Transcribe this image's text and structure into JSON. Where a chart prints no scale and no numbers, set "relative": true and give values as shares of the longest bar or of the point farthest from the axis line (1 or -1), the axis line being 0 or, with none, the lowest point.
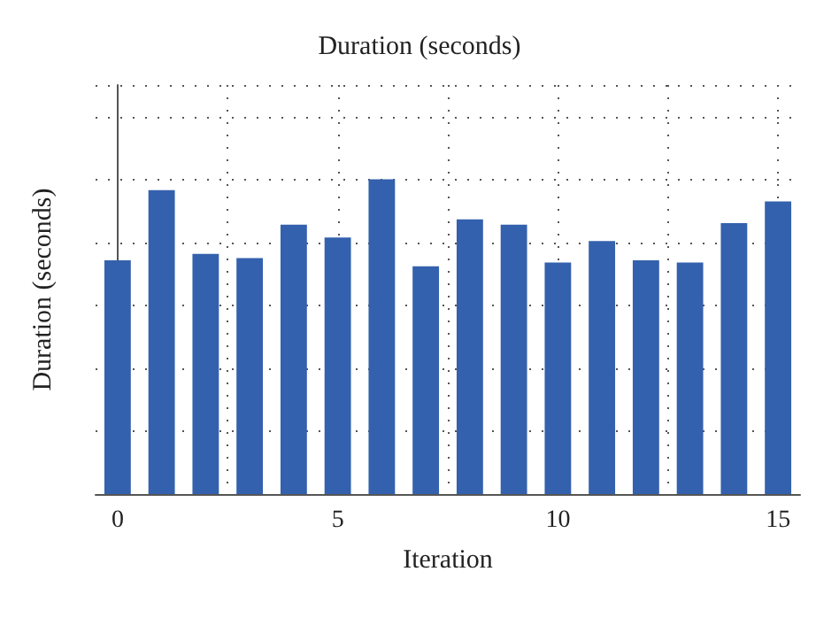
{
  "chart_data": {
    "type": "bar",
    "title": "Duration (seconds)",
    "xlabel": "Iteration",
    "ylabel": "Duration (seconds)",
    "x": [
      0,
      1,
      2,
      3,
      4,
      5,
      6,
      7,
      8,
      9,
      10,
      11,
      12,
      13,
      14,
      15
    ],
    "values": [
      0.743,
      0.966,
      0.763,
      0.75,
      0.856,
      0.815,
      1,
      0.724,
      0.873,
      0.856,
      0.736,
      0.804,
      0.743,
      0.736,
      0.861,
      0.93
    ],
    "color": "#3461ad",
    "relative": true,
    "xlim": [
      -0.5,
      15.5
    ],
    "xticks": [
      0,
      {
        "value": 2.5,
        "label": null
      },
      5,
      {
        "value": 7.5,
        "label": null
      },
      10,
      {
        "value": 12.5,
        "label": null
      },
      15
    ],
    "grid": true,
    "tick_labels": "x"
  }
}
